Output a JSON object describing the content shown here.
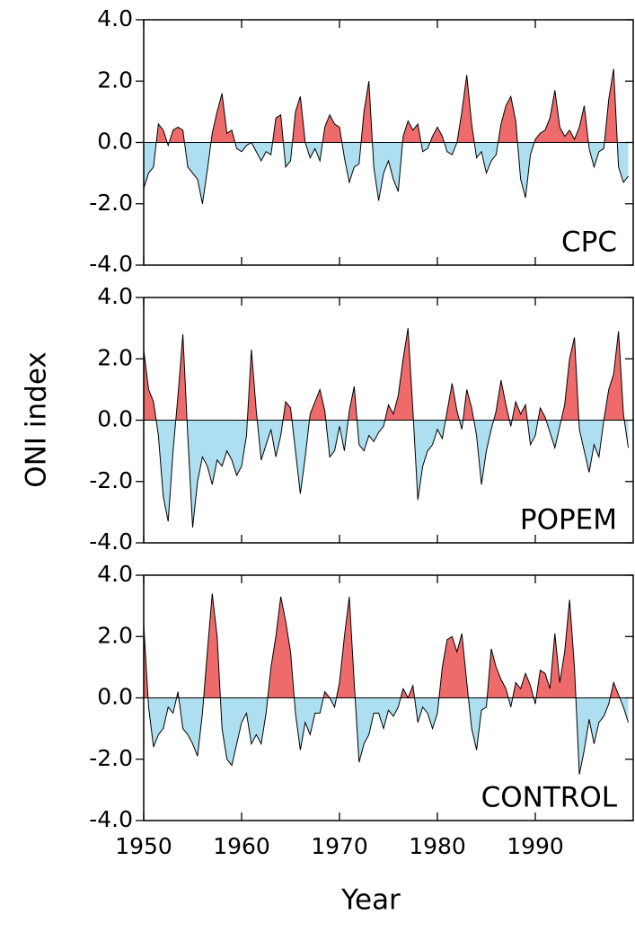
{
  "ylabel": "ONI index",
  "xlabel": "Year",
  "chart_data": [
    {
      "type": "area",
      "label": "CPC",
      "pos_color": "#ef6b6b",
      "neg_color": "#addff0",
      "line_color": "#000000",
      "xlim": [
        1950,
        2000
      ],
      "ylim": [
        -4,
        4
      ],
      "yticks": [
        {
          "value": 4,
          "label": "4.0"
        },
        {
          "value": 2,
          "label": "2.0"
        },
        {
          "value": 0,
          "label": "0.0"
        },
        {
          "value": -2,
          "label": "-2.0"
        },
        {
          "value": -4,
          "label": "-4.0"
        }
      ],
      "x": [
        1950,
        1950.5,
        1951,
        1951.5,
        1952,
        1952.5,
        1953,
        1953.5,
        1954,
        1954.5,
        1955,
        1955.5,
        1956,
        1956.5,
        1957,
        1957.5,
        1958,
        1958.5,
        1959,
        1959.5,
        1960,
        1960.5,
        1961,
        1961.5,
        1962,
        1962.5,
        1963,
        1963.5,
        1964,
        1964.5,
        1965,
        1965.5,
        1966,
        1966.5,
        1967,
        1967.5,
        1968,
        1968.5,
        1969,
        1969.5,
        1970,
        1970.5,
        1971,
        1971.5,
        1972,
        1972.5,
        1973,
        1973.5,
        1974,
        1974.5,
        1975,
        1975.5,
        1976,
        1976.5,
        1977,
        1977.5,
        1978,
        1978.5,
        1979,
        1979.5,
        1980,
        1980.5,
        1981,
        1981.5,
        1982,
        1982.5,
        1983,
        1983.5,
        1984,
        1984.5,
        1985,
        1985.5,
        1986,
        1986.5,
        1987,
        1987.5,
        1988,
        1988.5,
        1989,
        1989.5,
        1990,
        1990.5,
        1991,
        1991.5,
        1992,
        1992.5,
        1993,
        1993.5,
        1994,
        1994.5,
        1995,
        1995.5,
        1996,
        1996.5,
        1997,
        1997.5,
        1998,
        1998.5,
        1999,
        1999.5
      ],
      "values": [
        -1.5,
        -1.0,
        -0.8,
        0.6,
        0.4,
        -0.1,
        0.4,
        0.5,
        0.4,
        -0.8,
        -1.0,
        -1.2,
        -2.0,
        -0.9,
        0.3,
        1.0,
        1.6,
        0.3,
        0.4,
        -0.2,
        -0.3,
        -0.1,
        0.0,
        -0.3,
        -0.6,
        -0.3,
        -0.4,
        0.8,
        0.9,
        -0.8,
        -0.6,
        1.0,
        1.5,
        0.0,
        -0.5,
        -0.2,
        -0.6,
        0.5,
        0.9,
        0.6,
        0.5,
        -0.5,
        -1.3,
        -0.8,
        -0.7,
        1.0,
        2.0,
        -0.8,
        -1.9,
        -1.0,
        -0.6,
        -1.2,
        -1.6,
        0.2,
        0.7,
        0.4,
        0.6,
        -0.3,
        -0.2,
        0.2,
        0.5,
        0.2,
        -0.3,
        -0.4,
        0.0,
        1.0,
        2.2,
        0.6,
        -0.5,
        -0.3,
        -1.0,
        -0.6,
        -0.4,
        0.6,
        1.2,
        1.5,
        0.7,
        -1.2,
        -1.8,
        -0.4,
        0.1,
        0.3,
        0.4,
        0.8,
        1.7,
        0.5,
        0.2,
        0.4,
        0.1,
        0.5,
        1.2,
        -0.2,
        -0.8,
        -0.3,
        -0.2,
        1.4,
        2.4,
        -0.8,
        -1.3,
        -1.1
      ]
    },
    {
      "type": "area",
      "label": "POPEM",
      "pos_color": "#ef6b6b",
      "neg_color": "#addff0",
      "line_color": "#000000",
      "xlim": [
        1950,
        2000
      ],
      "ylim": [
        -4,
        4
      ],
      "yticks": [
        {
          "value": 4,
          "label": "4.0"
        },
        {
          "value": 2,
          "label": "2.0"
        },
        {
          "value": 0,
          "label": "0.0"
        },
        {
          "value": -2,
          "label": "-2.0"
        },
        {
          "value": -4,
          "label": "-4.0"
        }
      ],
      "x": [
        1950,
        1950.5,
        1951,
        1951.5,
        1952,
        1952.5,
        1953,
        1953.5,
        1954,
        1954.5,
        1955,
        1955.5,
        1956,
        1956.5,
        1957,
        1957.5,
        1958,
        1958.5,
        1959,
        1959.5,
        1960,
        1960.5,
        1961,
        1961.5,
        1962,
        1962.5,
        1963,
        1963.5,
        1964,
        1964.5,
        1965,
        1965.5,
        1966,
        1966.5,
        1967,
        1967.5,
        1968,
        1968.5,
        1969,
        1969.5,
        1970,
        1970.5,
        1971,
        1971.5,
        1972,
        1972.5,
        1973,
        1973.5,
        1974,
        1974.5,
        1975,
        1975.5,
        1976,
        1976.5,
        1977,
        1977.5,
        1978,
        1978.5,
        1979,
        1979.5,
        1980,
        1980.5,
        1981,
        1981.5,
        1982,
        1982.5,
        1983,
        1983.5,
        1984,
        1984.5,
        1985,
        1985.5,
        1986,
        1986.5,
        1987,
        1987.5,
        1988,
        1988.5,
        1989,
        1989.5,
        1990,
        1990.5,
        1991,
        1991.5,
        1992,
        1992.5,
        1993,
        1993.5,
        1994,
        1994.5,
        1995,
        1995.5,
        1996,
        1996.5,
        1997,
        1997.5,
        1998,
        1998.5,
        1999,
        1999.5
      ],
      "values": [
        2.3,
        1.0,
        0.6,
        -0.5,
        -2.5,
        -3.3,
        -1.0,
        0.8,
        2.8,
        -0.5,
        -3.5,
        -2.0,
        -1.2,
        -1.5,
        -2.1,
        -1.3,
        -1.5,
        -1.0,
        -1.3,
        -1.8,
        -1.5,
        -0.5,
        2.3,
        0.3,
        -1.3,
        -0.8,
        -0.3,
        -1.2,
        -0.5,
        0.6,
        0.4,
        -1.0,
        -2.4,
        -1.2,
        0.2,
        0.6,
        1.0,
        0.3,
        -1.2,
        -1.0,
        -0.2,
        -1.0,
        0.3,
        1.1,
        -0.8,
        -1.0,
        -0.5,
        -0.7,
        -0.4,
        -0.2,
        0.5,
        0.2,
        0.8,
        2.0,
        3.0,
        0.3,
        -2.6,
        -1.5,
        -1.0,
        -0.8,
        -0.3,
        -0.6,
        0.3,
        1.2,
        0.3,
        -0.3,
        1.0,
        0.4,
        -0.5,
        -2.1,
        -1.0,
        -0.3,
        0.3,
        1.3,
        0.5,
        -0.2,
        0.6,
        0.2,
        0.5,
        -0.8,
        -0.5,
        0.4,
        0.1,
        -0.4,
        -0.9,
        -0.2,
        0.5,
        2.0,
        2.7,
        -0.3,
        -1.0,
        -1.7,
        -0.8,
        -1.2,
        0.0,
        1.0,
        1.5,
        2.9,
        0.2,
        -0.9
      ]
    },
    {
      "type": "area",
      "label": "CONTROL",
      "pos_color": "#ef6b6b",
      "neg_color": "#addff0",
      "line_color": "#000000",
      "xlim": [
        1950,
        2000
      ],
      "ylim": [
        -4,
        4
      ],
      "yticks": [
        {
          "value": 4,
          "label": "4.0"
        },
        {
          "value": 2,
          "label": "2.0"
        },
        {
          "value": 0,
          "label": "0.0"
        },
        {
          "value": -2,
          "label": "-2.0"
        },
        {
          "value": -4,
          "label": "-4.0"
        }
      ],
      "xticks": [
        1950,
        1960,
        1970,
        1980,
        1990
      ],
      "x": [
        1950,
        1950.5,
        1951,
        1951.5,
        1952,
        1952.5,
        1953,
        1953.5,
        1954,
        1954.5,
        1955,
        1955.5,
        1956,
        1956.5,
        1957,
        1957.5,
        1958,
        1958.5,
        1959,
        1959.5,
        1960,
        1960.5,
        1961,
        1961.5,
        1962,
        1962.5,
        1963,
        1963.5,
        1964,
        1964.5,
        1965,
        1965.5,
        1966,
        1966.5,
        1967,
        1967.5,
        1968,
        1968.5,
        1969,
        1969.5,
        1970,
        1970.5,
        1971,
        1971.5,
        1972,
        1972.5,
        1973,
        1973.5,
        1974,
        1974.5,
        1975,
        1975.5,
        1976,
        1976.5,
        1977,
        1977.5,
        1978,
        1978.5,
        1979,
        1979.5,
        1980,
        1980.5,
        1981,
        1981.5,
        1982,
        1982.5,
        1983,
        1983.5,
        1984,
        1984.5,
        1985,
        1985.5,
        1986,
        1986.5,
        1987,
        1987.5,
        1988,
        1988.5,
        1989,
        1989.5,
        1990,
        1990.5,
        1991,
        1991.5,
        1992,
        1992.5,
        1993,
        1993.5,
        1994,
        1994.5,
        1995,
        1995.5,
        1996,
        1996.5,
        1997,
        1997.5,
        1998,
        1998.5,
        1999,
        1999.5
      ],
      "values": [
        2.4,
        -0.3,
        -1.6,
        -1.2,
        -1.0,
        -0.3,
        -0.5,
        0.2,
        -1.0,
        -1.2,
        -1.5,
        -1.9,
        -0.5,
        1.5,
        3.4,
        2.0,
        -1.0,
        -2.0,
        -2.2,
        -1.5,
        -0.8,
        -0.5,
        -1.5,
        -1.2,
        -1.5,
        -0.5,
        1.0,
        2.0,
        3.3,
        2.5,
        1.5,
        -0.5,
        -1.7,
        -0.8,
        -1.2,
        -0.5,
        -0.5,
        0.2,
        0.0,
        -0.3,
        0.5,
        2.0,
        3.3,
        0.5,
        -2.1,
        -1.5,
        -1.2,
        -0.5,
        -0.5,
        -1.0,
        -0.4,
        -0.6,
        -0.3,
        0.3,
        0.0,
        0.4,
        -0.8,
        -0.3,
        -0.5,
        -1.0,
        -0.5,
        1.0,
        1.9,
        2.0,
        1.5,
        2.1,
        0.5,
        -1.0,
        -1.7,
        -0.4,
        -0.3,
        1.6,
        1.0,
        0.6,
        0.3,
        -0.3,
        0.5,
        0.3,
        0.8,
        0.4,
        -0.2,
        0.9,
        0.8,
        0.3,
        2.1,
        0.5,
        1.5,
        3.2,
        1.0,
        -2.5,
        -1.7,
        -0.7,
        -1.5,
        -0.8,
        -0.6,
        -0.2,
        0.5,
        0.1,
        -0.3,
        -0.8
      ]
    }
  ]
}
